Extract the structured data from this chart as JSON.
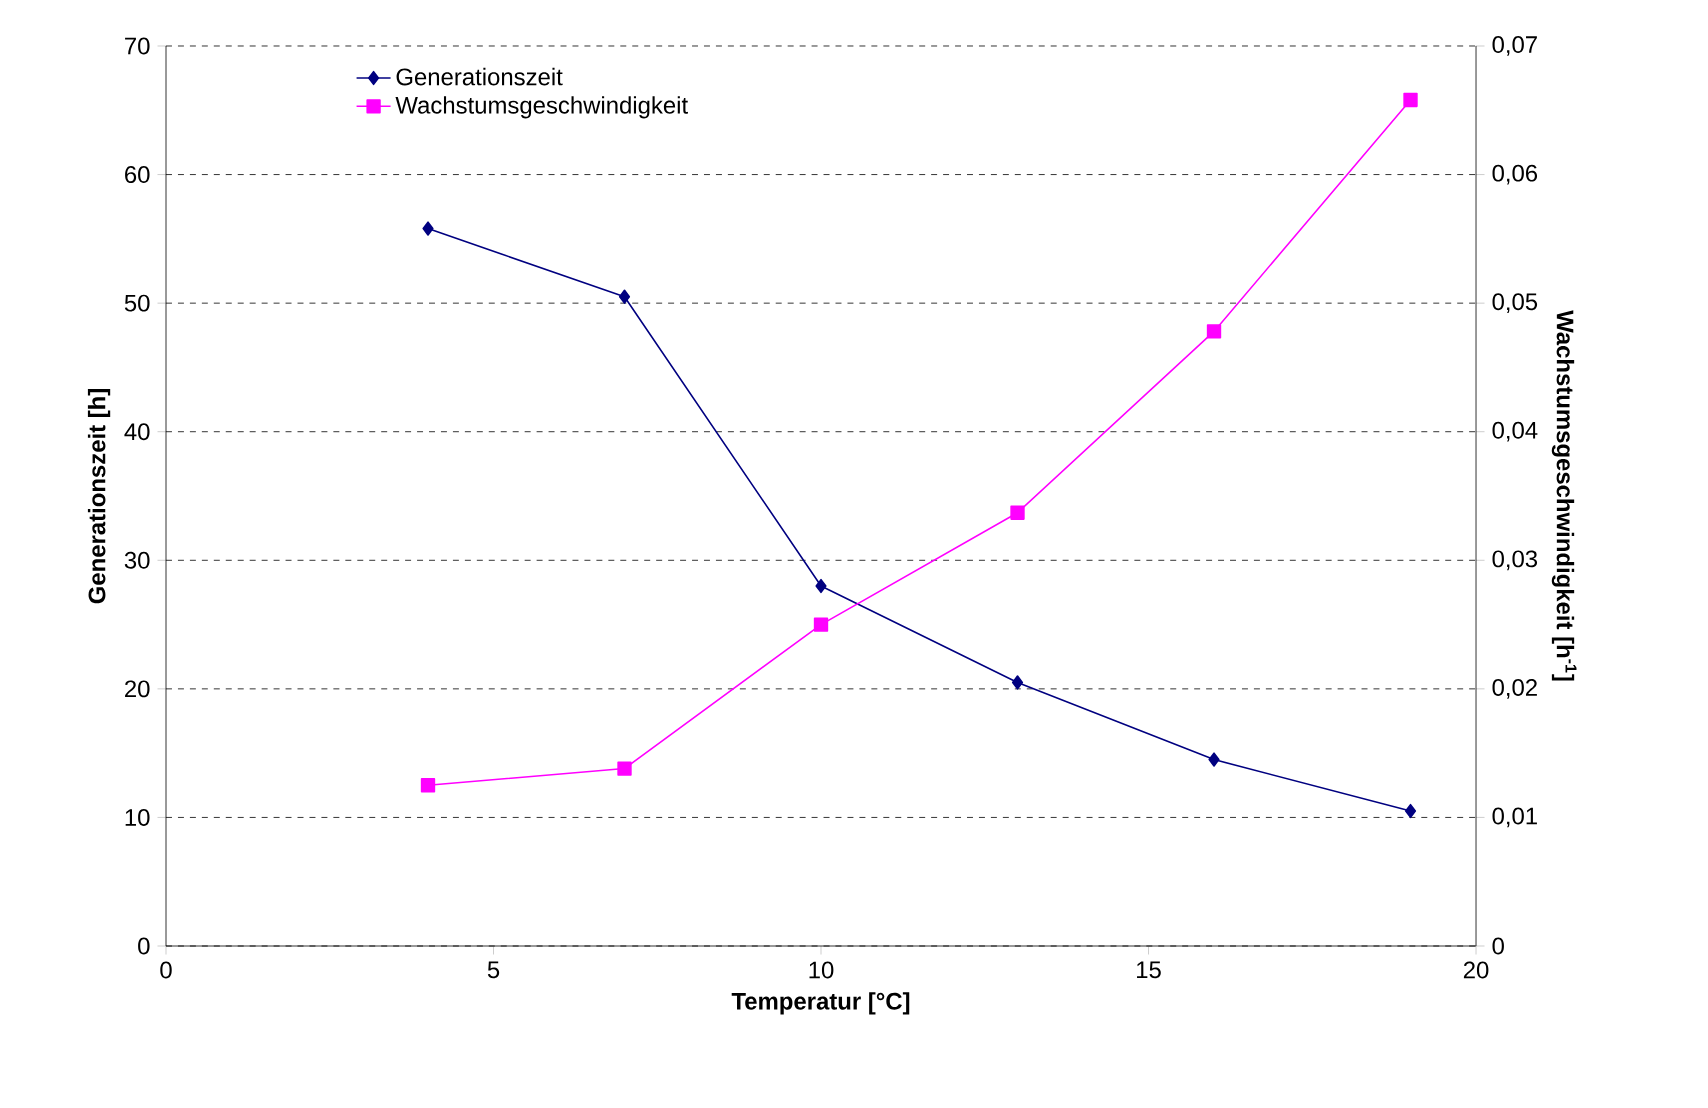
{
  "chart_data": {
    "type": "line",
    "xlabel": "Temperatur [°C]",
    "ylabel": "Generationszeit [h]",
    "y2label": "Wachstumsgeschwindigkeit  [h$^{-1}$]",
    "xlim": [
      0,
      20
    ],
    "xticks": [
      0,
      5,
      10,
      15,
      20
    ],
    "ylim": [
      0,
      70
    ],
    "yticks": [
      0,
      10,
      20,
      30,
      40,
      50,
      60,
      70
    ],
    "y2lim": [
      0,
      0.07
    ],
    "y2ticks": [
      {
        "value": 0,
        "label": "0"
      },
      {
        "value": 0.01,
        "label": "0,01"
      },
      {
        "value": 0.02,
        "label": "0,02"
      },
      {
        "value": 0.03,
        "label": "0,03"
      },
      {
        "value": 0.04,
        "label": "0,04"
      },
      {
        "value": 0.05,
        "label": "0,05"
      },
      {
        "value": 0.06,
        "label": "0,06"
      },
      {
        "value": 0.07,
        "label": "0,07"
      }
    ],
    "grid": "y",
    "legend": "top left",
    "series": [
      {
        "name": "Generationszeit",
        "color": "#000080",
        "marker": "diamond",
        "x": [
          4,
          7,
          10,
          13,
          16,
          19
        ],
        "values": [
          55.8,
          50.5,
          28,
          20.5,
          14.5,
          10.5
        ]
      },
      {
        "name": "Wachstumsgeschwindigkeit",
        "color": "#ff00ff",
        "marker": "square",
        "axis": "y2",
        "x": [
          4,
          7,
          10,
          13,
          16,
          19
        ],
        "values": [
          0.0125,
          0.0138,
          0.025,
          0.0337,
          0.0478,
          0.0658
        ]
      }
    ]
  }
}
